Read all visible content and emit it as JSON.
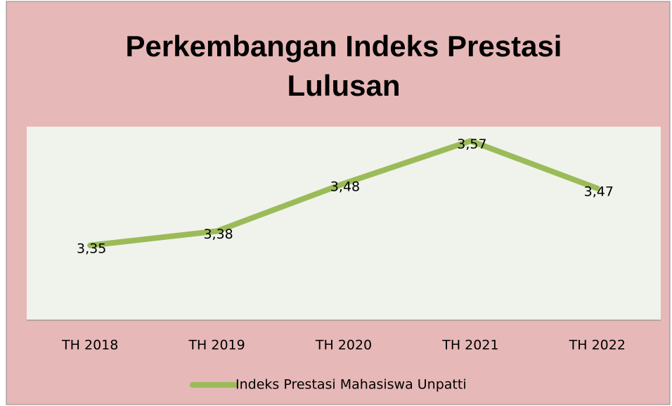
{
  "chart_data": {
    "type": "line",
    "title": "Perkembangan Indeks Prestasi Lulusan",
    "categories": [
      "TH 2018",
      "TH 2019",
      "TH 2020",
      "TH 2021",
      "TH 2022"
    ],
    "series": [
      {
        "name": "Indeks Prestasi Mahasiswa Unpatti",
        "color": "#9bbb59",
        "values": [
          3.35,
          3.38,
          3.48,
          3.57,
          3.47
        ],
        "value_labels": [
          "3,35",
          "3,38",
          "3,48",
          "3,57",
          "3,47"
        ]
      }
    ],
    "ylim": [
      3.2,
      3.6
    ],
    "grid": false,
    "legend": "bottom"
  }
}
